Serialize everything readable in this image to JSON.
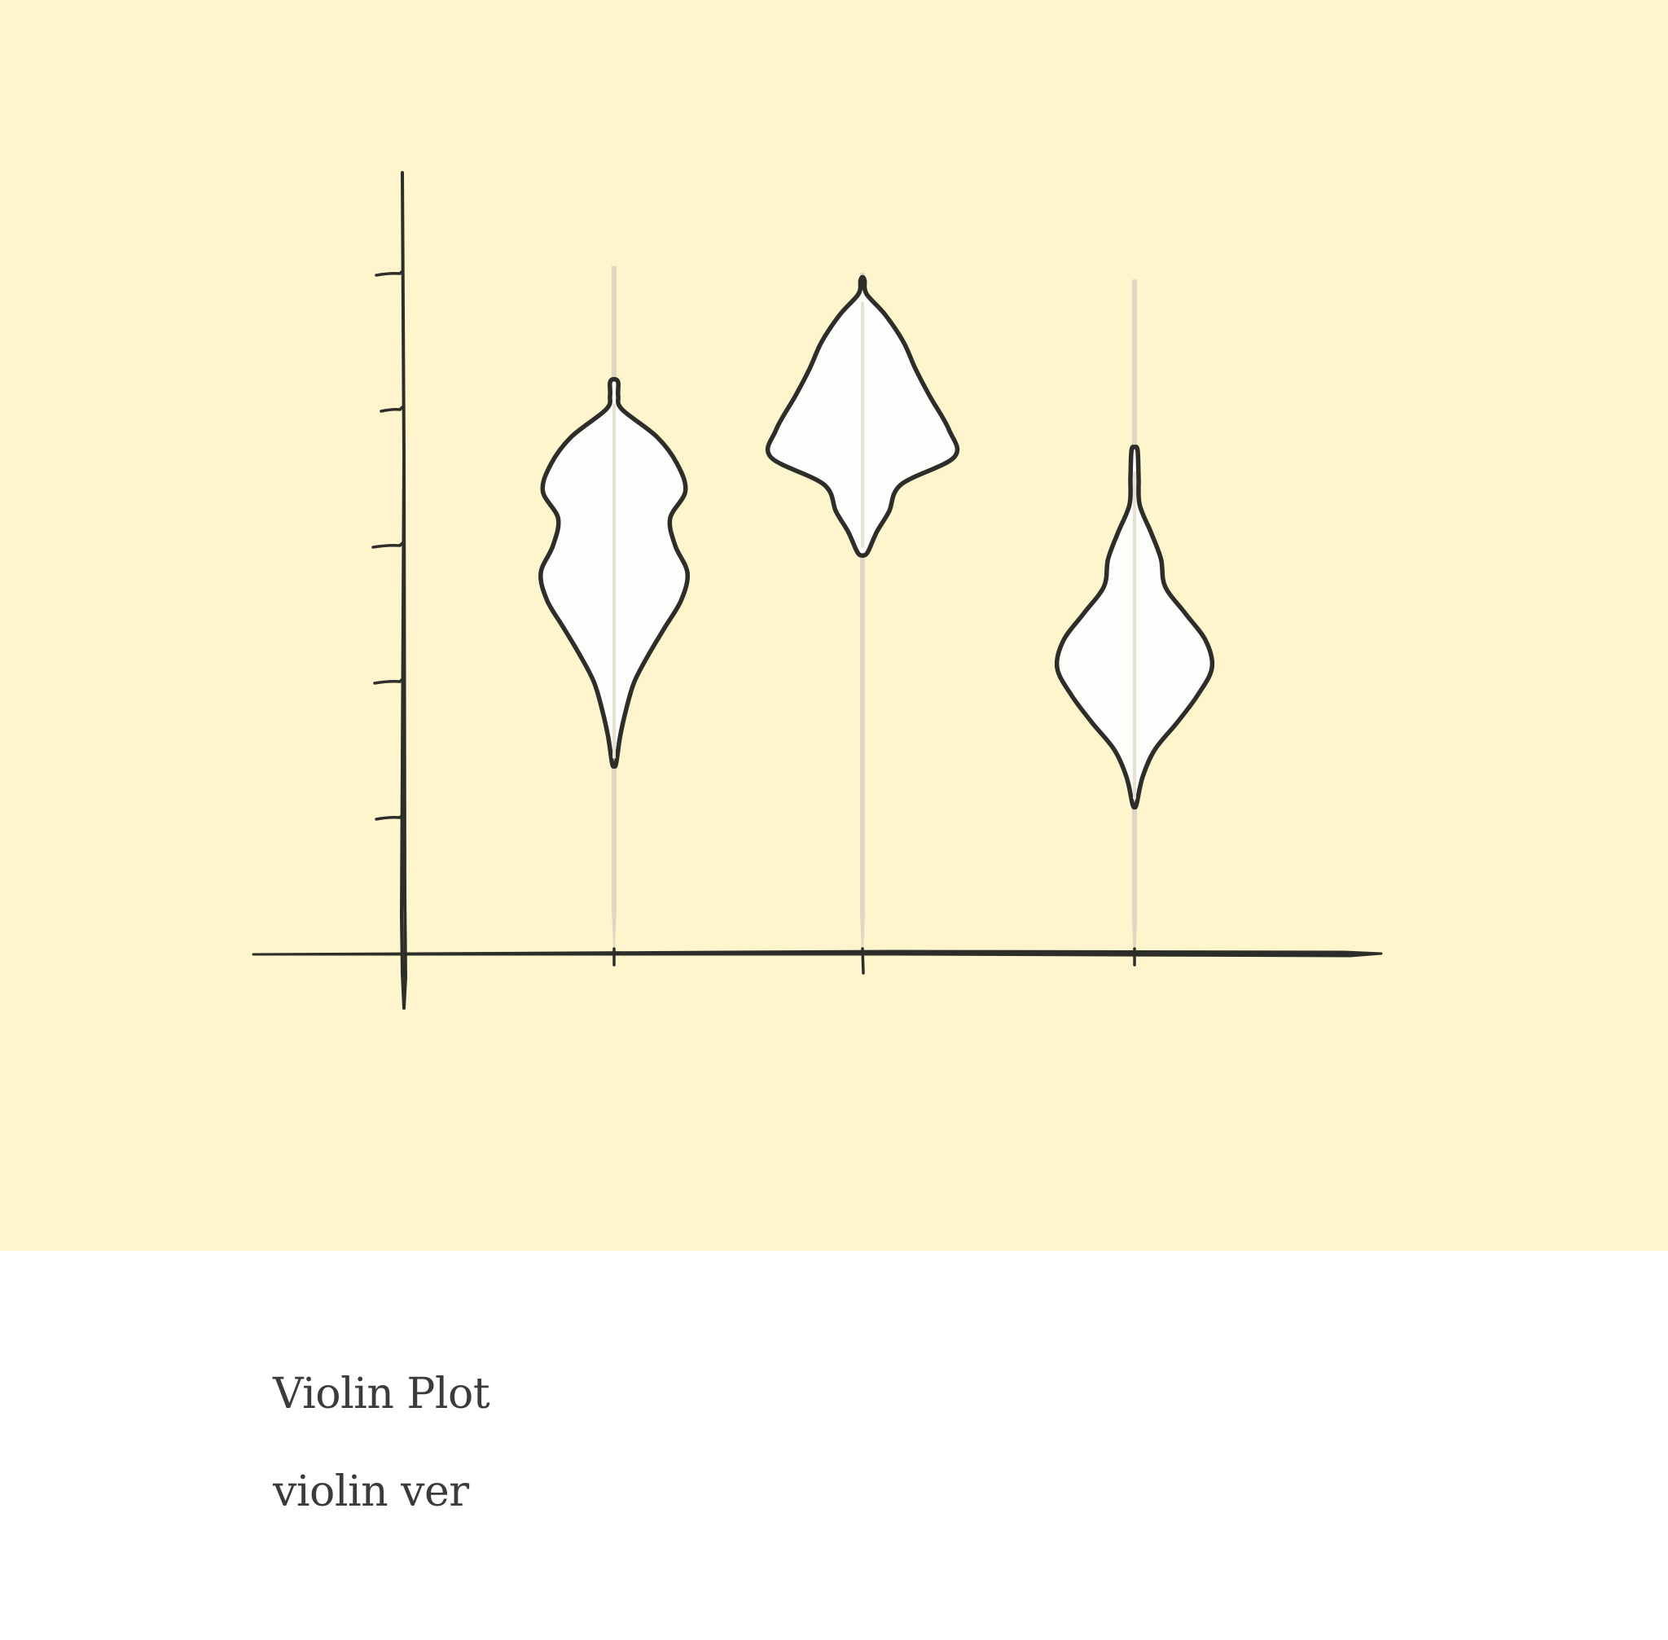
{
  "chart_data": {
    "type": "violin",
    "title": "Violin Plot",
    "subtitle": "violin ver",
    "xlabel": "",
    "ylabel": "",
    "categories": [
      "",
      "",
      ""
    ],
    "y_ticks": [
      1,
      2,
      3,
      4,
      5
    ],
    "ylim": [
      0,
      6
    ],
    "grid": false,
    "legend": "none",
    "series": [
      {
        "extent": [
          0.05,
          5.05
        ],
        "profile": [
          [
            1.4,
            0.02
          ],
          [
            1.6,
            0.06
          ],
          [
            1.8,
            0.12
          ],
          [
            2.0,
            0.2
          ],
          [
            2.2,
            0.34
          ],
          [
            2.4,
            0.5
          ],
          [
            2.6,
            0.66
          ],
          [
            2.8,
            0.72
          ],
          [
            3.0,
            0.6
          ],
          [
            3.2,
            0.55
          ],
          [
            3.4,
            0.7
          ],
          [
            3.6,
            0.62
          ],
          [
            3.8,
            0.42
          ],
          [
            4.0,
            0.08
          ],
          [
            4.2,
            0.04
          ],
          [
            4.1,
            0.04
          ]
        ]
      },
      {
        "extent": [
          0.0,
          5.0
        ],
        "profile": [
          [
            2.95,
            0.05
          ],
          [
            3.1,
            0.14
          ],
          [
            3.25,
            0.26
          ],
          [
            3.45,
            0.38
          ],
          [
            3.65,
            0.9
          ],
          [
            3.85,
            0.85
          ],
          [
            4.1,
            0.66
          ],
          [
            4.3,
            0.52
          ],
          [
            4.5,
            0.4
          ],
          [
            4.7,
            0.22
          ],
          [
            4.85,
            0.04
          ],
          [
            4.95,
            0.02
          ]
        ]
      },
      {
        "extent": [
          -0.05,
          4.95
        ],
        "profile": [
          [
            1.1,
            0.02
          ],
          [
            1.3,
            0.08
          ],
          [
            1.5,
            0.2
          ],
          [
            1.7,
            0.42
          ],
          [
            1.9,
            0.62
          ],
          [
            2.1,
            0.76
          ],
          [
            2.3,
            0.7
          ],
          [
            2.5,
            0.5
          ],
          [
            2.7,
            0.3
          ],
          [
            2.9,
            0.26
          ],
          [
            3.1,
            0.16
          ],
          [
            3.3,
            0.05
          ],
          [
            3.5,
            0.04
          ],
          [
            3.7,
            0.03
          ]
        ]
      }
    ]
  }
}
